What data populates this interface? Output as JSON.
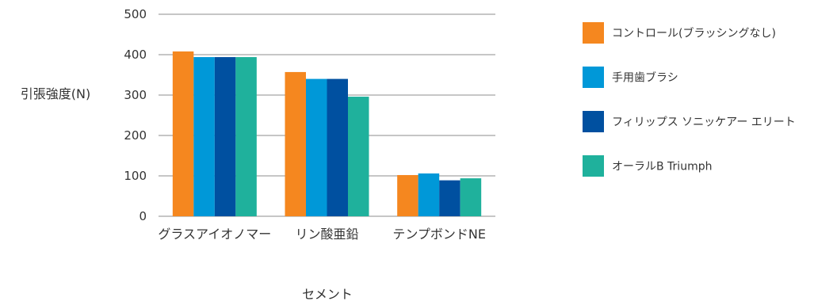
{
  "chart_data": {
    "type": "bar",
    "title": "",
    "xlabel": "セメント",
    "ylabel": "引張強度(N)",
    "ylim": [
      0,
      500
    ],
    "yticks": [
      0,
      100,
      200,
      300,
      400,
      500
    ],
    "grid": true,
    "legend_position": "right",
    "categories": [
      "グラスアイオノマー",
      "リン酸亜鉛",
      "テンプボンドNE"
    ],
    "series": [
      {
        "name": "コントロール(ブラッシングなし)",
        "color": "#F5871F",
        "values": [
          408,
          357,
          102
        ]
      },
      {
        "name": "手用歯ブラシ",
        "color": "#0098D8",
        "values": [
          394,
          340,
          106
        ]
      },
      {
        "name": "フィリップス ソニッケアー エリート",
        "color": "#0050A0",
        "values": [
          394,
          340,
          89
        ]
      },
      {
        "name": "オーラルB Triumph",
        "color": "#1FB19C",
        "values": [
          394,
          296,
          94
        ]
      }
    ]
  }
}
